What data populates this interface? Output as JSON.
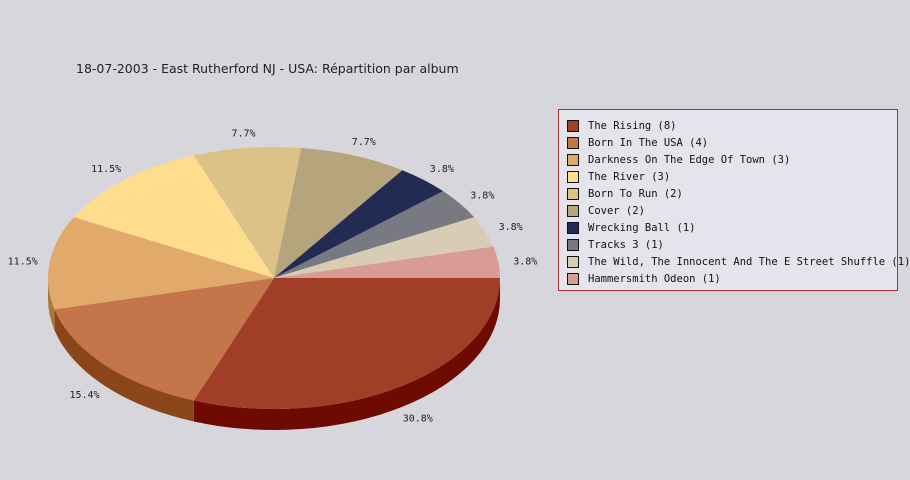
{
  "chart_data": {
    "type": "pie",
    "title": "18-07-2003 - East Rutherford NJ - USA:  Répartition par album",
    "legend_position": "right",
    "slices": [
      {
        "label": "The Rising (8)",
        "value": 8,
        "percent_label": "30.8%",
        "color": "#a13e28",
        "side": "#6e0a00"
      },
      {
        "label": "Born In The USA (4)",
        "value": 4,
        "percent_label": "15.4%",
        "color": "#c4764a",
        "side": "#8a4618"
      },
      {
        "label": "Darkness On The Edge Of Town (3)",
        "value": 3,
        "percent_label": "11.5%",
        "color": "#e1a96a",
        "side": "#a87a3a"
      },
      {
        "label": "The River (3)",
        "value": 3,
        "percent_label": "11.5%",
        "color": "#fedd8e",
        "side": "#c4a860"
      },
      {
        "label": "Born To Run (2)",
        "value": 2,
        "percent_label": "7.7%",
        "color": "#dcc286",
        "side": "#a8905a"
      },
      {
        "label": "Cover (2)",
        "value": 2,
        "percent_label": "7.7%",
        "color": "#b6a47c",
        "side": "#847450"
      },
      {
        "label": "Wrecking Ball (1)",
        "value": 1,
        "percent_label": "3.8%",
        "color": "#232b55",
        "side": "#10142c"
      },
      {
        "label": "Tracks 3 (1)",
        "value": 1,
        "percent_label": "3.8%",
        "color": "#797982",
        "side": "#4c4c54"
      },
      {
        "label": "The Wild, The Innocent And The E Street Shuffle (1)",
        "value": 1,
        "percent_label": "3.8%",
        "color": "#d8ccb4",
        "side": "#a89c84"
      },
      {
        "label": "Hammersmith Odeon  (1)",
        "value": 1,
        "percent_label": "3.8%",
        "color": "#d99c95",
        "side": "#a86c66"
      }
    ]
  }
}
